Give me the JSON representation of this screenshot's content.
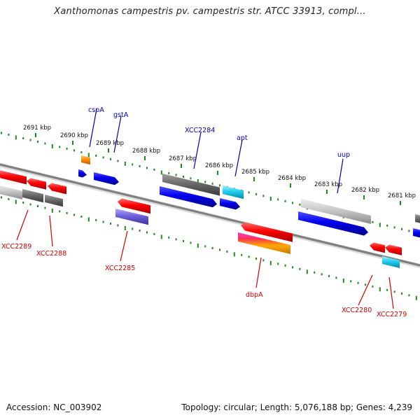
{
  "title": "Xanthomonas campestris pv. campestris str. ATCC 33913, compl...",
  "footer": {
    "accession": "Accession: NC_003902",
    "summary": "Topology: circular; Length: 5,076,188 bp; Genes: 4,239"
  },
  "colors": {
    "forward_label": "#0000aa",
    "reverse_label": "#cc0000",
    "tick": "#1e8a1e",
    "backbone": "#808080"
  },
  "kbp_ticks": [
    "2691 kbp",
    "2690 kbp",
    "2689 kbp",
    "2688 kbp",
    "2687 kbp",
    "2686 kbp",
    "2685 kbp",
    "2684 kbp",
    "2683 kbp",
    "2682 kbp",
    "2681 kbp"
  ],
  "forward_labels": [
    "cspA",
    "gstA",
    "XCC2284",
    "apt",
    "uup"
  ],
  "reverse_labels": [
    "XCC2289",
    "XCC2288",
    "XCC2285",
    "dbpA",
    "XCC2280",
    "XCC2279"
  ]
}
